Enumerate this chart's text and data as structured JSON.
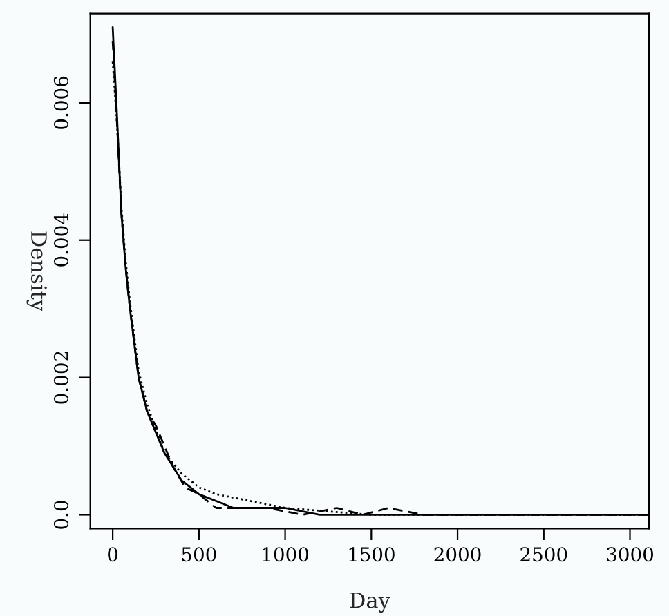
{
  "chart_data": {
    "type": "line",
    "xlabel": "Day",
    "ylabel": "Density",
    "xlim": [
      -130,
      3110
    ],
    "ylim": [
      -0.0002,
      0.0073
    ],
    "xticks": [
      0,
      500,
      1000,
      1500,
      2000,
      2500,
      3000
    ],
    "yticks": [
      {
        "value": 0,
        "label": "0.0"
      },
      0.002,
      0.004,
      0.006
    ],
    "grid": false,
    "legend": false,
    "series": [
      {
        "color": "#000000",
        "line_style": "solid",
        "x": [
          0,
          25,
          50,
          75,
          100,
          150,
          200,
          250,
          300,
          350,
          400,
          450,
          500,
          600,
          700,
          800,
          1000,
          1200,
          1500,
          1800,
          2000,
          2400,
          2500,
          3110
        ],
        "values": [
          0.0071,
          0.0058,
          0.0044,
          0.0036,
          0.003,
          0.002,
          0.0015,
          0.0012,
          0.0009,
          0.0007,
          0.0005,
          0.0004,
          0.0003,
          0.0002,
          0.0001,
          0.0001,
          0.0001,
          0.0,
          0.0,
          0.0,
          0.0,
          0.0,
          0.0,
          0.0
        ]
      },
      {
        "color": "#000000",
        "line_style": "dashed",
        "x": [
          0,
          25,
          50,
          75,
          100,
          150,
          200,
          250,
          300,
          350,
          420,
          500,
          600,
          700,
          900,
          1100,
          1300,
          1450,
          1600,
          1800,
          2000,
          2300,
          2400,
          2500,
          3110
        ],
        "values": [
          0.0069,
          0.0057,
          0.0044,
          0.0036,
          0.003,
          0.002,
          0.0015,
          0.0013,
          0.001,
          0.0007,
          0.0004,
          0.0003,
          0.0001,
          0.0001,
          0.0001,
          0.0,
          0.0001,
          0.0,
          0.0001,
          0.0,
          0.0,
          0.0,
          0.0,
          0.0,
          0.0
        ]
      },
      {
        "color": "#000000",
        "line_style": "dotted",
        "x": [
          0,
          25,
          50,
          75,
          100,
          150,
          200,
          300,
          400,
          500,
          600,
          800,
          1000,
          1500,
          2000,
          2500,
          3110
        ],
        "values": [
          0.0066,
          0.0057,
          0.0045,
          0.0037,
          0.0031,
          0.0021,
          0.0016,
          0.0009,
          0.0006,
          0.0004,
          0.0003,
          0.0002,
          0.0001,
          0.0,
          0.0,
          0.0,
          0.0
        ]
      }
    ]
  }
}
